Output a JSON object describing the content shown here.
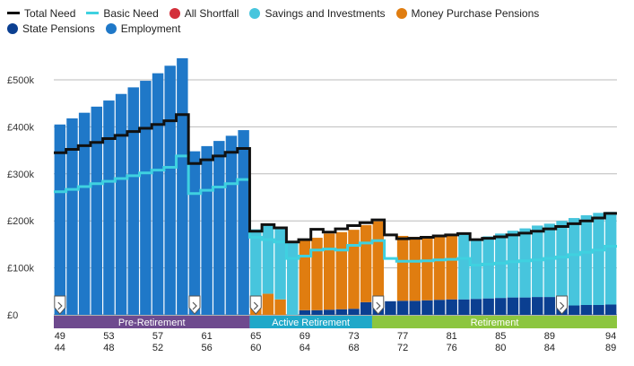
{
  "legend": [
    {
      "label": "Total Need",
      "kind": "line",
      "color": "#111111"
    },
    {
      "label": "Basic Need",
      "kind": "line",
      "color": "#3fd1e0"
    },
    {
      "label": "All Shortfall",
      "kind": "dot",
      "color": "#d32f3a"
    },
    {
      "label": "Savings and Investments",
      "kind": "dot",
      "color": "#47c5dd"
    },
    {
      "label": "Money Purchase Pensions",
      "kind": "dot",
      "color": "#e07d10"
    },
    {
      "label": "State Pensions",
      "kind": "dot",
      "color": "#0b3f91"
    },
    {
      "label": "Employment",
      "kind": "dot",
      "color": "#1f78c8"
    }
  ],
  "colors": {
    "employment": "#1f78c8",
    "state_pensions": "#0b3f91",
    "money_purchase": "#e07d10",
    "savings": "#47c5dd",
    "total_need": "#111111",
    "basic_need": "#3fd1e0",
    "phase_pre": "#6e4a8e",
    "phase_active": "#1fa8c9",
    "phase_ret": "#8cc63f",
    "grid": "#bbbbbb"
  },
  "chart_data": {
    "type": "bar",
    "stacked": true,
    "ylabel": "",
    "ylim": [
      0,
      550000
    ],
    "y_ticks": [
      {
        "value": 0,
        "label": "£0"
      },
      {
        "value": 100000,
        "label": "£100k"
      },
      {
        "value": 200000,
        "label": "£200k"
      },
      {
        "value": 300000,
        "label": "£300k"
      },
      {
        "value": 400000,
        "label": "£400k"
      },
      {
        "value": 500000,
        "label": "£500k"
      }
    ],
    "x": [
      49,
      50,
      51,
      52,
      53,
      54,
      55,
      56,
      57,
      58,
      59,
      60,
      61,
      62,
      63,
      64,
      65,
      66,
      67,
      68,
      69,
      70,
      71,
      72,
      73,
      74,
      75,
      76,
      77,
      78,
      79,
      80,
      81,
      82,
      83,
      84,
      85,
      86,
      87,
      88,
      89,
      90,
      91,
      92,
      93,
      94
    ],
    "x2": [
      44,
      45,
      46,
      47,
      48,
      49,
      50,
      51,
      52,
      53,
      54,
      55,
      56,
      57,
      58,
      59,
      60,
      61,
      62,
      63,
      64,
      65,
      66,
      67,
      68,
      69,
      70,
      71,
      72,
      73,
      74,
      75,
      76,
      77,
      78,
      79,
      80,
      81,
      82,
      83,
      84,
      85,
      86,
      87,
      88,
      89
    ],
    "x_tick_labels": [
      {
        "index": 0,
        "top": "49",
        "bottom": "44"
      },
      {
        "index": 4,
        "top": "53",
        "bottom": "48"
      },
      {
        "index": 8,
        "top": "57",
        "bottom": "52"
      },
      {
        "index": 12,
        "top": "61",
        "bottom": "56"
      },
      {
        "index": 16,
        "top": "65",
        "bottom": "60"
      },
      {
        "index": 20,
        "top": "69",
        "bottom": "64"
      },
      {
        "index": 24,
        "top": "73",
        "bottom": "68"
      },
      {
        "index": 28,
        "top": "77",
        "bottom": "72"
      },
      {
        "index": 32,
        "top": "81",
        "bottom": "76"
      },
      {
        "index": 36,
        "top": "85",
        "bottom": "80"
      },
      {
        "index": 40,
        "top": "89",
        "bottom": "84"
      },
      {
        "index": 45,
        "top": "94",
        "bottom": "89"
      }
    ],
    "series": [
      {
        "name": "Employment",
        "key": "employment",
        "values": [
          405000,
          418000,
          430000,
          443000,
          456000,
          470000,
          484000,
          498000,
          514000,
          530000,
          546000,
          348000,
          359000,
          370000,
          381000,
          393000,
          0,
          0,
          0,
          0,
          0,
          0,
          0,
          0,
          0,
          0,
          0,
          0,
          0,
          0,
          0,
          0,
          0,
          0,
          0,
          0,
          0,
          0,
          0,
          0,
          0,
          0,
          0,
          0,
          0,
          0
        ]
      },
      {
        "name": "State Pensions",
        "key": "state_pensions",
        "values": [
          0,
          0,
          0,
          0,
          0,
          0,
          0,
          0,
          0,
          0,
          0,
          0,
          0,
          0,
          0,
          0,
          0,
          0,
          0,
          0,
          10000,
          10000,
          11000,
          12000,
          13000,
          27000,
          28000,
          29000,
          30000,
          30000,
          31000,
          32000,
          33000,
          33000,
          34000,
          35000,
          36000,
          37000,
          37000,
          38000,
          38000,
          39000,
          20000,
          21000,
          21000,
          22000
        ]
      },
      {
        "name": "Money Purchase Pensions",
        "key": "money_purchase",
        "values": [
          0,
          0,
          0,
          0,
          0,
          0,
          0,
          0,
          0,
          0,
          0,
          0,
          0,
          0,
          0,
          0,
          20000,
          45000,
          33000,
          0,
          152000,
          154000,
          162000,
          164000,
          168000,
          164000,
          171000,
          0,
          138000,
          136000,
          136000,
          137000,
          137000,
          0,
          0,
          0,
          0,
          0,
          0,
          0,
          0,
          0,
          0,
          0,
          0,
          0
        ]
      },
      {
        "name": "Savings and Investments",
        "key": "savings",
        "values": [
          0,
          0,
          0,
          0,
          0,
          0,
          0,
          0,
          0,
          0,
          0,
          0,
          0,
          0,
          0,
          0,
          162000,
          148000,
          152000,
          155000,
          0,
          0,
          0,
          0,
          0,
          0,
          0,
          0,
          0,
          0,
          0,
          0,
          0,
          140000,
          128000,
          132000,
          137000,
          142000,
          147000,
          152000,
          156000,
          161000,
          186000,
          191000,
          196000,
          197000
        ]
      }
    ],
    "total_need": [
      345000,
      352000,
      360000,
      367000,
      375000,
      382000,
      390000,
      397000,
      405000,
      413000,
      426000,
      322000,
      330000,
      338000,
      346000,
      354000,
      178000,
      192000,
      185000,
      155000,
      160000,
      182000,
      176000,
      183000,
      190000,
      196000,
      202000,
      170000,
      162000,
      163000,
      165000,
      168000,
      170000,
      173000,
      160000,
      163000,
      166000,
      170000,
      174000,
      178000,
      183000,
      188000,
      194000,
      200000,
      206000,
      216000
    ],
    "basic_need": [
      262000,
      267000,
      273000,
      279000,
      284000,
      290000,
      296000,
      302000,
      308000,
      314000,
      338000,
      258000,
      265000,
      272000,
      279000,
      288000,
      165000,
      160000,
      155000,
      120000,
      125000,
      138000,
      140000,
      138000,
      148000,
      153000,
      158000,
      120000,
      114000,
      114000,
      115000,
      117000,
      118000,
      120000,
      106000,
      108000,
      110000,
      113000,
      115000,
      117000,
      120000,
      123000,
      128000,
      133000,
      138000,
      146000
    ],
    "shortfall": [],
    "event_markers": [
      0,
      11,
      16,
      26,
      41
    ],
    "phases": [
      {
        "label": "Pre-Retirement",
        "start": 0,
        "end": 15,
        "color_key": "phase_pre"
      },
      {
        "label": "Active Retirement",
        "start": 16,
        "end": 25,
        "color_key": "phase_active"
      },
      {
        "label": "Retirement",
        "start": 26,
        "end": 45,
        "color_key": "phase_ret"
      }
    ]
  }
}
